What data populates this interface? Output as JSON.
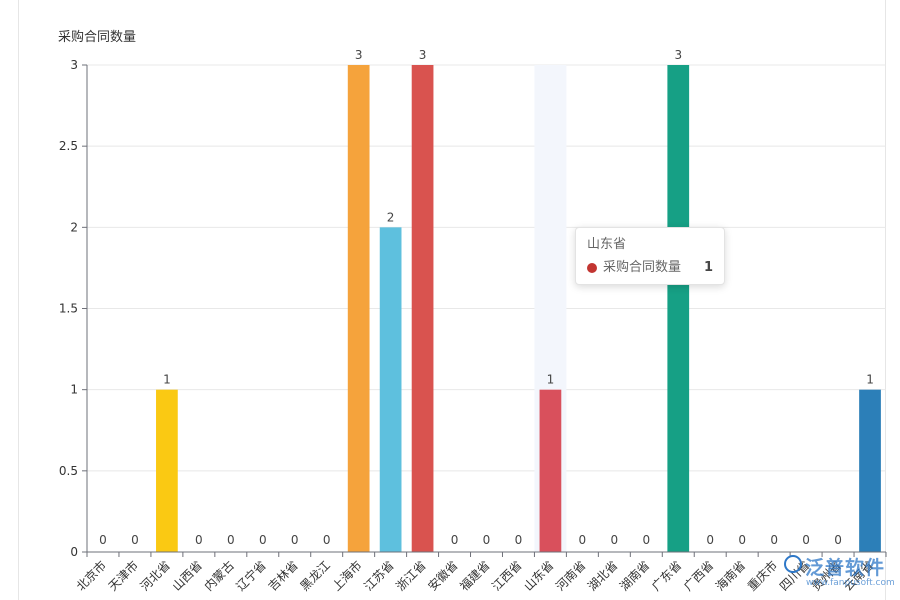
{
  "chart_data": {
    "type": "bar",
    "title": "",
    "ylabel": "采购合同数量",
    "xlabel": "",
    "ylim": [
      0,
      3
    ],
    "yticks": [
      0,
      0.5,
      1,
      1.5,
      2,
      2.5,
      3
    ],
    "grid": true,
    "categories": [
      "北京市",
      "天津市",
      "河北省",
      "山西省",
      "内蒙古",
      "辽宁省",
      "吉林省",
      "黑龙江",
      "上海市",
      "江苏省",
      "浙江省",
      "安徽省",
      "福建省",
      "江西省",
      "山东省",
      "河南省",
      "湖北省",
      "湖南省",
      "广东省",
      "广西省",
      "海南省",
      "重庆市",
      "四川省",
      "贵州省",
      "云南省"
    ],
    "series": [
      {
        "name": "采购合同数量",
        "values": [
          0,
          0,
          1,
          0,
          0,
          0,
          0,
          0,
          3,
          2,
          3,
          0,
          0,
          0,
          1,
          0,
          0,
          0,
          3,
          0,
          0,
          0,
          0,
          0,
          1
        ]
      }
    ],
    "bar_colors": [
      "#5470c6",
      "#91cc75",
      "#fac913",
      "#ee6666",
      "#73c0de",
      "#3ba272",
      "#fc8452",
      "#9a60b4",
      "#f5a33c",
      "#5ec0de",
      "#d9534f",
      "#8e7cc3",
      "#6aa84f",
      "#e69138",
      "#d9505c",
      "#45818e",
      "#b4a7d6",
      "#f1c232",
      "#16a085",
      "#cc4125",
      "#3d85c6",
      "#a64d79",
      "#6d9eeb",
      "#93c47d",
      "#2c7fb8"
    ],
    "highlighted_category": "山东省"
  },
  "tooltip": {
    "title": "山东省",
    "series_name": "采购合同数量",
    "value": "1",
    "marker_color": "#c23531"
  },
  "watermark": {
    "brand": "泛普软件",
    "url": "www.fanpusoft.com",
    "color": "#2e78c8"
  }
}
